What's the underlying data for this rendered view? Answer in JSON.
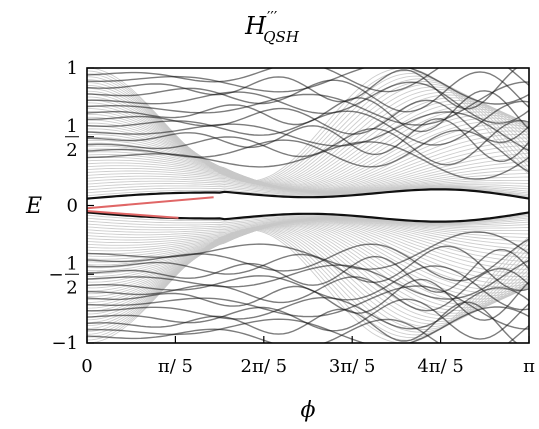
{
  "chart_data": {
    "type": "line",
    "title": {
      "main": "H",
      "primes": "′′′",
      "subscript": "QSH"
    },
    "xlabel": "ϕ",
    "ylabel": "E",
    "xlim": [
      0,
      3.14159
    ],
    "ylim": [
      -1,
      1
    ],
    "x_ticks": [
      {
        "value": 0,
        "label": "0"
      },
      {
        "value": 0.62832,
        "label": "π/ 5"
      },
      {
        "value": 1.25664,
        "label": "2π/ 5"
      },
      {
        "value": 1.88496,
        "label": "3π/ 5"
      },
      {
        "value": 2.51327,
        "label": "4π/ 5"
      },
      {
        "value": 3.14159,
        "label": "π"
      }
    ],
    "y_ticks": [
      {
        "value": 1,
        "label": "1",
        "kind": "plain"
      },
      {
        "value": 0.5,
        "label": "1/2",
        "kind": "frac",
        "num": "1",
        "den": "2",
        "sign": ""
      },
      {
        "value": 0,
        "label": "0",
        "kind": "plain"
      },
      {
        "value": -0.5,
        "label": "−1/2",
        "kind": "frac",
        "num": "1",
        "den": "2",
        "sign": "−"
      },
      {
        "value": -1,
        "label": "−1",
        "kind": "plain"
      }
    ],
    "edge_states": {
      "color": "#e06666",
      "upper": [
        [
          0,
          -0.02
        ],
        [
          0.9,
          0.06
        ]
      ],
      "lower": [
        [
          0,
          -0.04
        ],
        [
          0.65,
          -0.09
        ]
      ]
    },
    "band_colors": {
      "light": "#c8c8c8",
      "dark": "#111111"
    },
    "grid": false,
    "legend": "none"
  }
}
